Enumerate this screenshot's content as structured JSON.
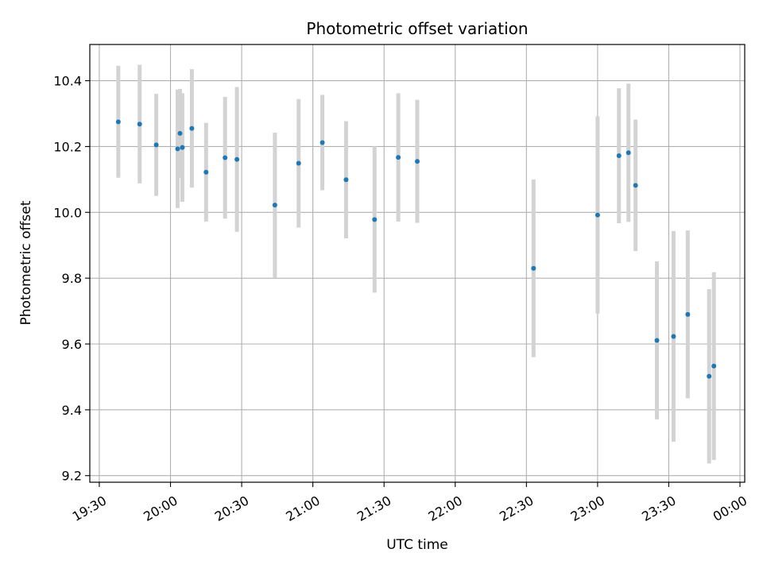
{
  "chart_data": {
    "type": "scatter",
    "title": "Photometric offset variation",
    "xlabel": "UTC time",
    "ylabel": "Photometric offset",
    "xlim": [
      "19:26",
      "00:02"
    ],
    "ylim": [
      9.18,
      10.51
    ],
    "x_ticks": [
      "19:30",
      "20:00",
      "20:30",
      "21:00",
      "21:30",
      "22:00",
      "22:30",
      "23:00",
      "23:30",
      "00:00"
    ],
    "y_ticks": [
      9.2,
      9.4,
      9.6,
      9.8,
      10.0,
      10.2,
      10.4
    ],
    "grid": true,
    "point_color": "#1f77b4",
    "errorbar_color": "#d3d3d3",
    "points": [
      {
        "x": "19:38",
        "y": 10.275,
        "err": 0.17
      },
      {
        "x": "19:47",
        "y": 10.268,
        "err": 0.18
      },
      {
        "x": "19:54",
        "y": 10.205,
        "err": 0.155
      },
      {
        "x": "20:03",
        "y": 10.193,
        "err": 0.18
      },
      {
        "x": "20:04",
        "y": 10.24,
        "err": 0.135
      },
      {
        "x": "20:05",
        "y": 10.197,
        "err": 0.165
      },
      {
        "x": "20:09",
        "y": 10.255,
        "err": 0.18
      },
      {
        "x": "20:15",
        "y": 10.122,
        "err": 0.15
      },
      {
        "x": "20:23",
        "y": 10.166,
        "err": 0.185
      },
      {
        "x": "20:28",
        "y": 10.161,
        "err": 0.22
      },
      {
        "x": "20:44",
        "y": 10.022,
        "err": 0.22
      },
      {
        "x": "20:54",
        "y": 10.149,
        "err": 0.195
      },
      {
        "x": "21:04",
        "y": 10.212,
        "err": 0.145
      },
      {
        "x": "21:14",
        "y": 10.099,
        "err": 0.178
      },
      {
        "x": "21:26",
        "y": 9.978,
        "err": 0.222
      },
      {
        "x": "21:36",
        "y": 10.167,
        "err": 0.195
      },
      {
        "x": "21:44",
        "y": 10.155,
        "err": 0.187
      },
      {
        "x": "22:33",
        "y": 9.83,
        "err": 0.27
      },
      {
        "x": "23:00",
        "y": 9.992,
        "err": 0.3
      },
      {
        "x": "23:09",
        "y": 10.172,
        "err": 0.205
      },
      {
        "x": "23:13",
        "y": 10.181,
        "err": 0.21
      },
      {
        "x": "23:16",
        "y": 10.082,
        "err": 0.2
      },
      {
        "x": "23:25",
        "y": 9.611,
        "err": 0.24
      },
      {
        "x": "23:32",
        "y": 9.623,
        "err": 0.32
      },
      {
        "x": "23:38",
        "y": 9.69,
        "err": 0.255
      },
      {
        "x": "23:47",
        "y": 9.502,
        "err": 0.265
      },
      {
        "x": "23:49",
        "y": 9.533,
        "err": 0.285
      }
    ]
  }
}
